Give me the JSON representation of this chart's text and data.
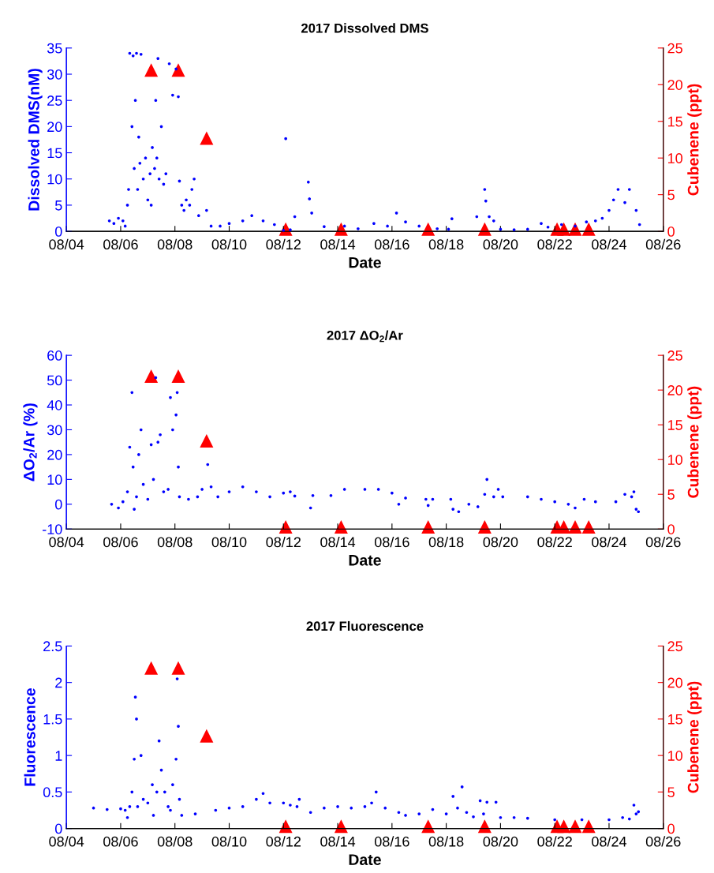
{
  "chart_data": [
    {
      "type": "scatter",
      "title": "2017 Dissolved DMS",
      "xlabel": "Date",
      "ylabel": "Dissolved DMS(nM)",
      "y2label": "Cubenene (ppt)",
      "legend": false,
      "grid": false,
      "xlim": [
        "2017-08-04",
        "2017-08-26"
      ],
      "xticks": [
        {
          "value": "2017-08-04",
          "label": "08/04"
        },
        {
          "value": "2017-08-06",
          "label": "08/06"
        },
        {
          "value": "2017-08-08",
          "label": "08/08"
        },
        {
          "value": "2017-08-10",
          "label": "08/10"
        },
        {
          "value": "2017-08-12",
          "label": "08/12"
        },
        {
          "value": "2017-08-14",
          "label": "08/14"
        },
        {
          "value": "2017-08-16",
          "label": "08/16"
        },
        {
          "value": "2017-08-18",
          "label": "08/18"
        },
        {
          "value": "2017-08-20",
          "label": "08/20"
        },
        {
          "value": "2017-08-22",
          "label": "08/22"
        },
        {
          "value": "2017-08-24",
          "label": "08/24"
        },
        {
          "value": "2017-08-26",
          "label": "08/26"
        }
      ],
      "ylim": [
        0,
        35
      ],
      "yticks": [
        0,
        5,
        10,
        15,
        20,
        25,
        30,
        35
      ],
      "y2lim": [
        0,
        25
      ],
      "y2ticks": [
        0,
        5,
        10,
        15,
        20,
        25
      ],
      "series": [
        {
          "color": "#0000ff",
          "marker": "circle",
          "x": [
            "2017-08-05T14:00",
            "2017-08-05T18:00",
            "2017-08-05T22:00",
            "2017-08-06T02:00",
            "2017-08-06T04:00",
            "2017-08-06T06:00",
            "2017-08-06T07:00",
            "2017-08-06T08:00",
            "2017-08-06T10:00",
            "2017-08-06T11:00",
            "2017-08-06T12:00",
            "2017-08-06T13:00",
            "2017-08-06T14:00",
            "2017-08-06T15:00",
            "2017-08-06T16:00",
            "2017-08-06T17:00",
            "2017-08-06T18:00",
            "2017-08-06T20:00",
            "2017-08-06T22:00",
            "2017-08-07T00:00",
            "2017-08-07T02:00",
            "2017-08-07T03:00",
            "2017-08-07T04:00",
            "2017-08-07T06:00",
            "2017-08-07T07:00",
            "2017-08-07T08:00",
            "2017-08-07T09:00",
            "2017-08-07T10:00",
            "2017-08-07T12:00",
            "2017-08-07T14:00",
            "2017-08-07T16:00",
            "2017-08-07T19:00",
            "2017-08-07T22:00",
            "2017-08-08T01:00",
            "2017-08-08T03:00",
            "2017-08-08T04:00",
            "2017-08-08T06:00",
            "2017-08-08T08:00",
            "2017-08-08T10:00",
            "2017-08-08T13:00",
            "2017-08-08T15:00",
            "2017-08-08T17:00",
            "2017-08-08T21:00",
            "2017-08-09T04:00",
            "2017-08-09T08:00",
            "2017-08-09T16:00",
            "2017-08-10T00:00",
            "2017-08-10T12:00",
            "2017-08-10T20:00",
            "2017-08-11T06:00",
            "2017-08-11T16:00",
            "2017-08-12T00:00",
            "2017-08-12T02:00",
            "2017-08-12T06:00",
            "2017-08-12T10:00",
            "2017-08-12T22:00",
            "2017-08-12T23:00",
            "2017-08-13T01:00",
            "2017-08-13T12:00",
            "2017-08-14T06:00",
            "2017-08-14T18:00",
            "2017-08-15T08:00",
            "2017-08-15T20:00",
            "2017-08-16T04:00",
            "2017-08-16T12:00",
            "2017-08-17T00:00",
            "2017-08-17T16:00",
            "2017-08-18T02:00",
            "2017-08-18T05:00",
            "2017-08-19T03:00",
            "2017-08-19T10:00",
            "2017-08-19T11:00",
            "2017-08-19T14:00",
            "2017-08-19T18:00",
            "2017-08-20T00:00",
            "2017-08-20T12:00",
            "2017-08-21T00:00",
            "2017-08-21T12:00",
            "2017-08-21T18:00",
            "2017-08-22T06:00",
            "2017-08-22T18:00",
            "2017-08-23T04:00",
            "2017-08-23T12:00",
            "2017-08-23T18:00",
            "2017-08-24T00:00",
            "2017-08-24T04:00",
            "2017-08-24T08:00",
            "2017-08-24T14:00",
            "2017-08-24T18:00",
            "2017-08-25T00:00",
            "2017-08-25T03:00"
          ],
          "values": [
            2.0,
            1.5,
            2.5,
            2.0,
            1.0,
            5.0,
            8.0,
            34.0,
            20.0,
            33.5,
            12.0,
            25.0,
            34.0,
            8.0,
            18.0,
            13.0,
            33.8,
            10.0,
            14.0,
            6.0,
            11.0,
            5.0,
            16.0,
            12.0,
            25.0,
            14.0,
            33.0,
            10.0,
            20.0,
            9.0,
            11.0,
            32.0,
            26.0,
            31.0,
            25.7,
            9.6,
            5.0,
            4.0,
            6.0,
            5.0,
            8.0,
            10.0,
            3.0,
            4.0,
            1.0,
            1.0,
            1.5,
            2.0,
            3.0,
            2.0,
            1.3,
            0.2,
            17.7,
            0.3,
            2.8,
            9.4,
            6.2,
            3.5,
            0.9,
            1.0,
            0.5,
            1.5,
            1.0,
            3.5,
            1.8,
            1.0,
            0.5,
            0.4,
            2.4,
            2.8,
            8.0,
            5.8,
            2.8,
            2.0,
            0.4,
            0.3,
            0.4,
            1.5,
            0.8,
            1.3,
            1.0,
            1.8,
            2.0,
            2.5,
            4.0,
            6.0,
            8.0,
            5.5,
            8.0,
            4.0,
            1.3
          ]
        },
        {
          "color": "#ff0000",
          "marker": "triangle",
          "axis": "y2",
          "x": [
            "2017-08-07T03:00",
            "2017-08-08T03:00",
            "2017-08-09T04:00",
            "2017-08-12T02:00",
            "2017-08-14T03:00",
            "2017-08-17T08:00",
            "2017-08-19T10:00",
            "2017-08-22T02:00",
            "2017-08-22T08:00",
            "2017-08-22T18:00",
            "2017-08-23T06:00"
          ],
          "values": [
            22,
            22,
            12.7,
            0.3,
            0.3,
            0.3,
            0.3,
            0.3,
            0.3,
            0.3,
            0.3
          ]
        }
      ]
    },
    {
      "type": "scatter",
      "title": "2017 ΔO$_{2}$/Ar",
      "xlabel": "Date",
      "ylabel": "ΔO$_{2}$/Ar (%)",
      "y2label": "Cubenene (ppt)",
      "legend": false,
      "grid": false,
      "xlim": [
        "2017-08-04",
        "2017-08-26"
      ],
      "xticks": [
        {
          "value": "2017-08-04",
          "label": "08/04"
        },
        {
          "value": "2017-08-06",
          "label": "08/06"
        },
        {
          "value": "2017-08-08",
          "label": "08/08"
        },
        {
          "value": "2017-08-10",
          "label": "08/10"
        },
        {
          "value": "2017-08-12",
          "label": "08/12"
        },
        {
          "value": "2017-08-14",
          "label": "08/14"
        },
        {
          "value": "2017-08-16",
          "label": "08/16"
        },
        {
          "value": "2017-08-18",
          "label": "08/18"
        },
        {
          "value": "2017-08-20",
          "label": "08/20"
        },
        {
          "value": "2017-08-22",
          "label": "08/22"
        },
        {
          "value": "2017-08-24",
          "label": "08/24"
        },
        {
          "value": "2017-08-26",
          "label": "08/26"
        }
      ],
      "ylim": [
        -10,
        60
      ],
      "yticks": [
        -10,
        0,
        10,
        20,
        30,
        40,
        50,
        60
      ],
      "y2lim": [
        0,
        25
      ],
      "y2ticks": [
        0,
        5,
        10,
        15,
        20,
        25
      ],
      "series": [
        {
          "color": "#0000ff",
          "marker": "circle",
          "x": [
            "2017-08-05T16:00",
            "2017-08-05T22:00",
            "2017-08-06T02:00",
            "2017-08-06T06:00",
            "2017-08-06T08:00",
            "2017-08-06T10:00",
            "2017-08-06T11:00",
            "2017-08-06T12:00",
            "2017-08-06T14:00",
            "2017-08-06T16:00",
            "2017-08-06T18:00",
            "2017-08-06T20:00",
            "2017-08-07T00:00",
            "2017-08-07T03:00",
            "2017-08-07T05:00",
            "2017-08-07T07:00",
            "2017-08-07T09:00",
            "2017-08-07T11:00",
            "2017-08-07T14:00",
            "2017-08-07T18:00",
            "2017-08-07T20:00",
            "2017-08-07T22:00",
            "2017-08-08T01:00",
            "2017-08-08T02:00",
            "2017-08-08T03:00",
            "2017-08-08T04:00",
            "2017-08-08T12:00",
            "2017-08-08T20:00",
            "2017-08-09T00:00",
            "2017-08-09T05:00",
            "2017-08-09T08:00",
            "2017-08-09T14:00",
            "2017-08-10T00:00",
            "2017-08-10T12:00",
            "2017-08-11T00:00",
            "2017-08-11T12:00",
            "2017-08-12T00:00",
            "2017-08-12T06:00",
            "2017-08-12T10:00",
            "2017-08-13T00:00",
            "2017-08-13T02:00",
            "2017-08-13T18:00",
            "2017-08-14T06:00",
            "2017-08-15T00:00",
            "2017-08-15T12:00",
            "2017-08-16T00:00",
            "2017-08-16T06:00",
            "2017-08-16T12:00",
            "2017-08-17T06:00",
            "2017-08-17T08:00",
            "2017-08-17T12:00",
            "2017-08-18T04:00",
            "2017-08-18T06:00",
            "2017-08-18T11:00",
            "2017-08-18T20:00",
            "2017-08-19T04:00",
            "2017-08-19T10:00",
            "2017-08-19T12:00",
            "2017-08-19T18:00",
            "2017-08-19T22:00",
            "2017-08-20T02:00",
            "2017-08-21T00:00",
            "2017-08-21T12:00",
            "2017-08-22T00:00",
            "2017-08-22T12:00",
            "2017-08-22T18:00",
            "2017-08-23T02:00",
            "2017-08-23T12:00",
            "2017-08-24T06:00",
            "2017-08-24T14:00",
            "2017-08-24T20:00",
            "2017-08-24T22:00",
            "2017-08-25T00:00",
            "2017-08-25T02:00"
          ],
          "values": [
            0,
            -1.5,
            1.0,
            5,
            23,
            45,
            15,
            -2,
            3,
            20,
            30,
            8,
            2,
            24,
            10,
            51,
            25,
            28,
            5,
            6,
            43,
            30,
            36,
            45,
            15,
            3,
            2,
            3,
            6,
            16,
            7,
            3,
            5,
            7,
            5,
            3,
            4.5,
            5,
            3.3,
            -1.5,
            3.5,
            3.5,
            6,
            6,
            6,
            4.5,
            0,
            2.5,
            2,
            -0.5,
            2,
            2,
            -2,
            -3,
            0,
            -1,
            4,
            10,
            3,
            6,
            3,
            3,
            2,
            1,
            0,
            -1.5,
            2,
            1,
            1,
            4,
            3,
            5,
            -2,
            -3
          ]
        },
        {
          "color": "#ff0000",
          "marker": "triangle",
          "axis": "y2",
          "x": [
            "2017-08-07T03:00",
            "2017-08-08T03:00",
            "2017-08-09T04:00",
            "2017-08-12T02:00",
            "2017-08-14T03:00",
            "2017-08-17T08:00",
            "2017-08-19T10:00",
            "2017-08-22T02:00",
            "2017-08-22T08:00",
            "2017-08-22T18:00",
            "2017-08-23T06:00"
          ],
          "values": [
            22,
            22,
            12.7,
            0.3,
            0.3,
            0.3,
            0.3,
            0.3,
            0.3,
            0.3,
            0.3
          ]
        }
      ]
    },
    {
      "type": "scatter",
      "title": "2017 Fluorescence",
      "xlabel": "Date",
      "ylabel": "Fluorescence",
      "y2label": "Cubenene (ppt)",
      "legend": false,
      "grid": false,
      "xlim": [
        "2017-08-04",
        "2017-08-26"
      ],
      "xticks": [
        {
          "value": "2017-08-04",
          "label": "08/04"
        },
        {
          "value": "2017-08-06",
          "label": "08/06"
        },
        {
          "value": "2017-08-08",
          "label": "08/08"
        },
        {
          "value": "2017-08-10",
          "label": "08/10"
        },
        {
          "value": "2017-08-12",
          "label": "08/12"
        },
        {
          "value": "2017-08-14",
          "label": "08/14"
        },
        {
          "value": "2017-08-16",
          "label": "08/16"
        },
        {
          "value": "2017-08-18",
          "label": "08/18"
        },
        {
          "value": "2017-08-20",
          "label": "08/20"
        },
        {
          "value": "2017-08-22",
          "label": "08/22"
        },
        {
          "value": "2017-08-24",
          "label": "08/24"
        },
        {
          "value": "2017-08-26",
          "label": "08/26"
        }
      ],
      "ylim": [
        0,
        2.5
      ],
      "yticks": [
        0,
        0.5,
        1,
        1.5,
        2,
        2.5
      ],
      "y2lim": [
        0,
        25
      ],
      "y2ticks": [
        0,
        5,
        10,
        15,
        20,
        25
      ],
      "series": [
        {
          "color": "#0000ff",
          "marker": "circle",
          "x": [
            "2017-08-05T00:00",
            "2017-08-05T12:00",
            "2017-08-06T00:00",
            "2017-08-06T04:00",
            "2017-08-06T06:00",
            "2017-08-06T08:00",
            "2017-08-06T10:00",
            "2017-08-06T12:00",
            "2017-08-06T13:00",
            "2017-08-06T14:00",
            "2017-08-06T15:00",
            "2017-08-06T18:00",
            "2017-08-06T20:00",
            "2017-08-07T00:00",
            "2017-08-07T04:00",
            "2017-08-07T05:00",
            "2017-08-07T08:00",
            "2017-08-07T10:00",
            "2017-08-07T12:00",
            "2017-08-07T15:00",
            "2017-08-07T18:00",
            "2017-08-07T20:00",
            "2017-08-07T22:00",
            "2017-08-08T01:00",
            "2017-08-08T02:00",
            "2017-08-08T03:00",
            "2017-08-08T04:00",
            "2017-08-08T06:00",
            "2017-08-08T18:00",
            "2017-08-09T12:00",
            "2017-08-10T00:00",
            "2017-08-10T12:00",
            "2017-08-11T00:00",
            "2017-08-11T06:00",
            "2017-08-11T12:00",
            "2017-08-12T00:00",
            "2017-08-12T06:00",
            "2017-08-12T12:00",
            "2017-08-12T14:00",
            "2017-08-13T00:00",
            "2017-08-13T12:00",
            "2017-08-14T00:00",
            "2017-08-14T12:00",
            "2017-08-15T00:00",
            "2017-08-15T06:00",
            "2017-08-15T10:00",
            "2017-08-15T18:00",
            "2017-08-16T06:00",
            "2017-08-16T12:00",
            "2017-08-17T00:00",
            "2017-08-17T12:00",
            "2017-08-18T00:00",
            "2017-08-18T06:00",
            "2017-08-18T10:00",
            "2017-08-18T14:00",
            "2017-08-18T18:00",
            "2017-08-19T00:00",
            "2017-08-19T06:00",
            "2017-08-19T09:00",
            "2017-08-19T12:00",
            "2017-08-19T20:00",
            "2017-08-20T00:00",
            "2017-08-20T12:00",
            "2017-08-21T00:00",
            "2017-08-22T00:00",
            "2017-08-23T00:00",
            "2017-08-24T00:00",
            "2017-08-24T12:00",
            "2017-08-24T18:00",
            "2017-08-24T22:00",
            "2017-08-25T00:00",
            "2017-08-25T02:00"
          ],
          "values": [
            0.28,
            0.26,
            0.27,
            0.25,
            0.15,
            0.3,
            0.5,
            0.95,
            1.8,
            1.5,
            0.3,
            1.0,
            0.4,
            0.35,
            0.6,
            0.18,
            0.5,
            1.2,
            0.8,
            0.5,
            0.3,
            0.25,
            0.6,
            0.95,
            2.05,
            1.4,
            0.4,
            0.18,
            0.2,
            0.25,
            0.28,
            0.3,
            0.4,
            0.48,
            0.35,
            0.35,
            0.32,
            0.3,
            0.4,
            0.22,
            0.28,
            0.3,
            0.28,
            0.3,
            0.35,
            0.5,
            0.28,
            0.22,
            0.18,
            0.2,
            0.26,
            0.2,
            0.44,
            0.28,
            0.57,
            0.22,
            0.16,
            0.38,
            0.2,
            0.36,
            0.36,
            0.15,
            0.15,
            0.14,
            0.12,
            0.12,
            0.12,
            0.15,
            0.13,
            0.32,
            0.2,
            0.23
          ]
        },
        {
          "color": "#ff0000",
          "marker": "triangle",
          "axis": "y2",
          "x": [
            "2017-08-07T03:00",
            "2017-08-08T03:00",
            "2017-08-09T04:00",
            "2017-08-12T02:00",
            "2017-08-14T03:00",
            "2017-08-17T08:00",
            "2017-08-19T10:00",
            "2017-08-22T02:00",
            "2017-08-22T08:00",
            "2017-08-22T18:00",
            "2017-08-23T06:00"
          ],
          "values": [
            22,
            22,
            12.7,
            0.3,
            0.3,
            0.3,
            0.3,
            0.3,
            0.3,
            0.3,
            0.3
          ]
        }
      ]
    }
  ]
}
